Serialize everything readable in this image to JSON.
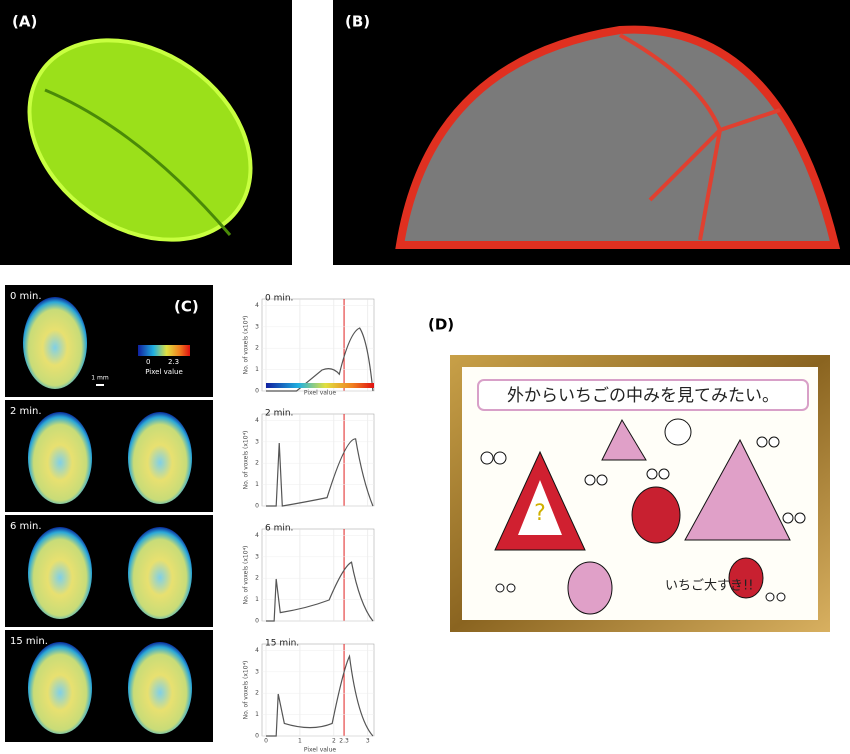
{
  "panels": {
    "a": {
      "label": "(A)"
    },
    "b": {
      "label": "(B)"
    },
    "c": {
      "label": "(C)",
      "colorbar": {
        "min": "0",
        "max": "2.3",
        "title": "Pixel value"
      },
      "scale_bar": "1 mm",
      "rows": [
        {
          "time": "0 min."
        },
        {
          "time": "2 min."
        },
        {
          "time": "6 min."
        },
        {
          "time": "15 min."
        }
      ],
      "plot": {
        "y_label": "No. of voxels (x10⁴)",
        "x_label": "Pixel value",
        "xticks": [
          "0",
          "1",
          "2",
          "2.3",
          "3"
        ],
        "yticks": [
          "0",
          "1",
          "2",
          "3",
          "4"
        ]
      }
    },
    "d": {
      "label": "(D)",
      "title": "外からいちごの中みを見てみたい。",
      "caption": "いちご大すき!!"
    }
  }
}
